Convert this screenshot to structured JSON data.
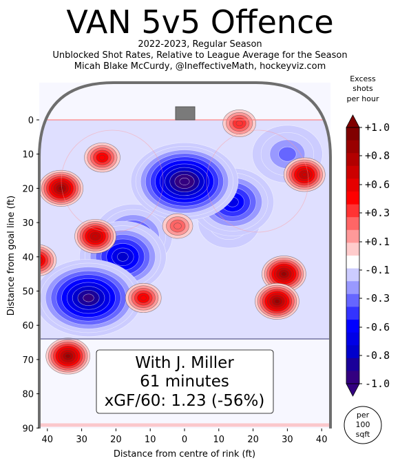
{
  "title": "VAN 5v5 Offence",
  "subtitle_lines": [
    "2022-2023, Regular Season",
    "Unblocked Shot Rates, Relative to League Average for the Season",
    "Micah Blake McCurdy, @IneffectiveMath, hockeyviz.com"
  ],
  "annotation": {
    "line1": "With J. Miller",
    "line2": "61 minutes",
    "line3": "xGF/60: 1.23 (-56%)"
  },
  "colorbar": {
    "title_lines": [
      "Excess",
      "shots",
      "per hour"
    ],
    "tick_labels": [
      "+1.0",
      "+0.8",
      "+0.6",
      "+0.3",
      "+0.1",
      "-0.1",
      "-0.3",
      "-0.6",
      "-0.8",
      "-1.0"
    ],
    "unit_lines": [
      "per",
      "100",
      "sqft"
    ],
    "colors_top_to_bottom": [
      "#800000",
      "#990000",
      "#b20000",
      "#cc0000",
      "#e60000",
      "#ff0000",
      "#ff3333",
      "#ff6666",
      "#ff9999",
      "#ffcccc",
      "#ffffff",
      "#ccccff",
      "#9999ff",
      "#6666ff",
      "#3333ff",
      "#0000ff",
      "#0000e6",
      "#0000cc",
      "#1a0099",
      "#330080"
    ]
  },
  "chart_data": {
    "type": "heatmap",
    "title": "VAN 5v5 Offence",
    "xlabel": "Distance from centre of rink (ft)",
    "ylabel": "Distance from goal line (ft)",
    "xlim": [
      -42.5,
      42.5
    ],
    "ylim": [
      90,
      -11
    ],
    "x_ticks": [
      -40,
      -30,
      -20,
      -10,
      0,
      10,
      20,
      30,
      40
    ],
    "x_tick_labels": [
      "40",
      "30",
      "20",
      "10",
      "0",
      "10",
      "20",
      "30",
      "40"
    ],
    "y_ticks": [
      0,
      10,
      20,
      30,
      40,
      50,
      60,
      70,
      80,
      90
    ],
    "y_tick_labels": [
      "0",
      "10",
      "20",
      "30",
      "40",
      "50",
      "60",
      "70",
      "80",
      "90"
    ],
    "colorbar_range": [
      -1.0,
      1.0
    ],
    "hotspots": [
      {
        "x": 0,
        "y": 18,
        "value": -1.0
      },
      {
        "x": -28,
        "y": 52,
        "value": -0.9
      },
      {
        "x": -18,
        "y": 40,
        "value": -0.7
      },
      {
        "x": 14,
        "y": 24,
        "value": -0.6
      },
      {
        "x": -15,
        "y": 34,
        "value": -0.5
      },
      {
        "x": 30,
        "y": 10,
        "value": -0.3
      },
      {
        "x": -36,
        "y": 20,
        "value": 0.8
      },
      {
        "x": -26,
        "y": 34,
        "value": 0.7
      },
      {
        "x": -34,
        "y": 69,
        "value": 0.8
      },
      {
        "x": -43,
        "y": 41,
        "value": 0.6
      },
      {
        "x": -24,
        "y": 11,
        "value": 0.5
      },
      {
        "x": 35,
        "y": 16,
        "value": 0.7
      },
      {
        "x": 29,
        "y": 45,
        "value": 0.8
      },
      {
        "x": 27,
        "y": 53,
        "value": 0.8
      },
      {
        "x": -12,
        "y": 52,
        "value": 0.5
      },
      {
        "x": 16,
        "y": 1,
        "value": 0.4
      },
      {
        "x": -2,
        "y": 31,
        "value": 0.3
      },
      {
        "x": 13,
        "y": 30,
        "value": -0.1
      }
    ],
    "grid": false
  }
}
